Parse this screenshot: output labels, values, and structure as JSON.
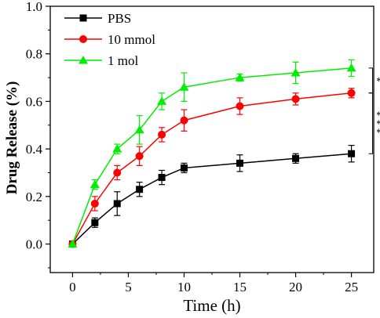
{
  "chart_data": {
    "type": "line",
    "xlabel": "Time (h)",
    "ylabel": "Drug Release (%)",
    "xlim": [
      -2,
      27
    ],
    "ylim": [
      -0.12,
      1.0
    ],
    "x_ticks": [
      0,
      5,
      10,
      15,
      20,
      25
    ],
    "y_ticks": [
      0.0,
      0.2,
      0.4,
      0.6,
      0.8,
      1.0
    ],
    "x_tick_labels": [
      "0",
      "5",
      "10",
      "15",
      "20",
      "25"
    ],
    "y_tick_labels": [
      "0.0",
      "0.2",
      "0.4",
      "0.6",
      "0.8",
      "1.0"
    ],
    "x": [
      0,
      2,
      4,
      6,
      8,
      10,
      15,
      20,
      25
    ],
    "legend_position": "top-left",
    "series": [
      {
        "name": "PBS",
        "color": "#000000",
        "marker": "square",
        "values": [
          0.0,
          0.09,
          0.17,
          0.23,
          0.28,
          0.32,
          0.34,
          0.36,
          0.38
        ],
        "errors": [
          0.0,
          0.02,
          0.05,
          0.03,
          0.03,
          0.02,
          0.035,
          0.02,
          0.035
        ]
      },
      {
        "name": "10 mmol",
        "color": "#ff0000",
        "marker": "circle",
        "values": [
          0.0,
          0.17,
          0.3,
          0.37,
          0.46,
          0.52,
          0.58,
          0.61,
          0.635
        ],
        "errors": [
          0.0,
          0.03,
          0.03,
          0.04,
          0.03,
          0.045,
          0.035,
          0.025,
          0.02
        ]
      },
      {
        "name": "1 mol",
        "color": "#00ee00",
        "marker": "triangle",
        "values": [
          0.0,
          0.25,
          0.4,
          0.48,
          0.6,
          0.66,
          0.7,
          0.72,
          0.74
        ],
        "errors": [
          0.0,
          0.02,
          0.02,
          0.06,
          0.035,
          0.06,
          0.015,
          0.045,
          0.035
        ]
      }
    ],
    "annotations": [
      {
        "label": "*",
        "between": [
          "1 mol",
          "10 mmol"
        ],
        "at_x": 25
      },
      {
        "label": "***",
        "between": [
          "10 mmol",
          "PBS"
        ],
        "at_x": 25
      }
    ]
  }
}
